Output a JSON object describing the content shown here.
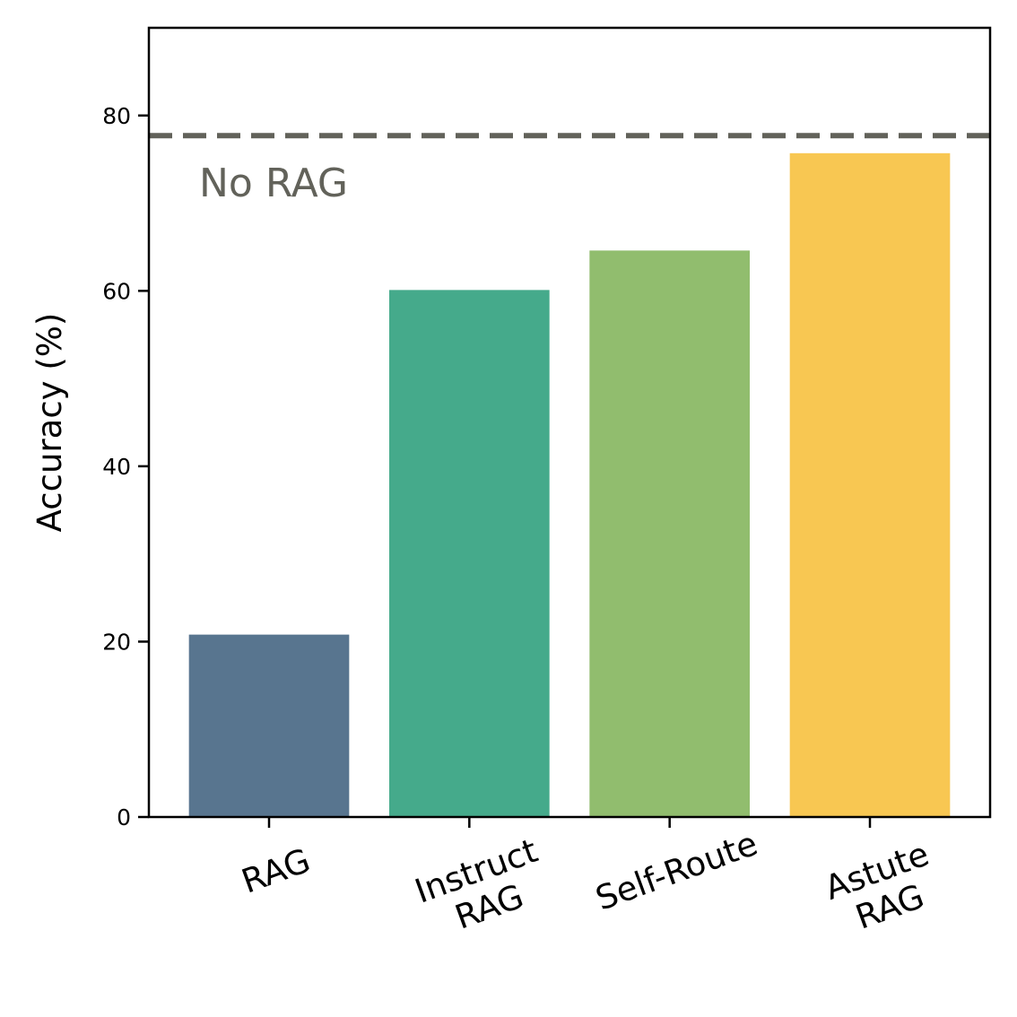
{
  "chart_data": {
    "type": "bar",
    "categories": [
      [
        "RAG"
      ],
      [
        "Instruct",
        "RAG"
      ],
      [
        "Self-Route"
      ],
      [
        "Astute",
        "RAG"
      ]
    ],
    "values": [
      20.8,
      60.1,
      64.6,
      75.7
    ],
    "bar_colors": [
      "#58758f",
      "#45aa8b",
      "#91bd6e",
      "#f8c752"
    ],
    "title": "",
    "xlabel": "",
    "ylabel": "Accuracy (%)",
    "ylim": [
      0,
      90
    ],
    "yticks": [
      0,
      20,
      40,
      60,
      80
    ],
    "grid": false,
    "reference_line": {
      "label": "No RAG",
      "value": 77.7,
      "style": "dashed",
      "color": "#62625a"
    }
  }
}
